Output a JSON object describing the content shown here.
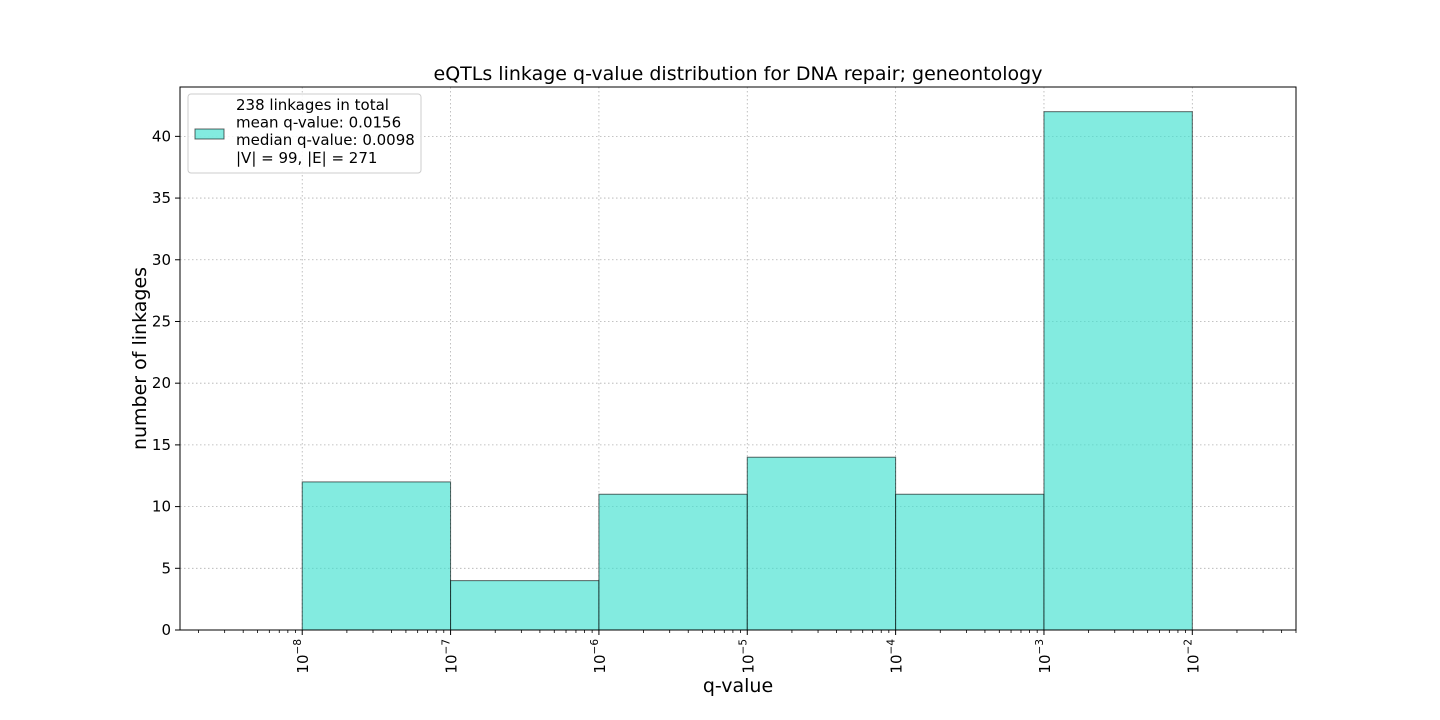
{
  "chart_data": {
    "type": "bar",
    "title": "eQTLs linkage q-value distribution for DNA repair; geneontology",
    "xlabel": "q-value",
    "ylabel": "number of linkages",
    "x_scale": "log",
    "xlim": [
      1.5e-09,
      0.05
    ],
    "ylim": [
      0,
      44
    ],
    "grid": true,
    "bin_edges": [
      1e-08,
      1e-07,
      1e-06,
      1e-05,
      0.0001,
      0.001,
      0.01
    ],
    "values": [
      12,
      4,
      11,
      14,
      11,
      42
    ],
    "bar_color": "#40e0d0",
    "bar_edge_color": "#000000",
    "y_ticks": [
      0,
      5,
      10,
      15,
      20,
      25,
      30,
      35,
      40
    ],
    "x_ticks": [
      {
        "base": "10",
        "exp": "−8"
      },
      {
        "base": "10",
        "exp": "−7"
      },
      {
        "base": "10",
        "exp": "−6"
      },
      {
        "base": "10",
        "exp": "−5"
      },
      {
        "base": "10",
        "exp": "−4"
      },
      {
        "base": "10",
        "exp": "−3"
      },
      {
        "base": "10",
        "exp": "−2"
      }
    ],
    "legend": {
      "position": "top-left",
      "lines": [
        "238 linkages in total",
        "mean q-value: 0.0156",
        "median q-value: 0.0098",
        "|V| = 99, |E| = 271"
      ]
    }
  }
}
